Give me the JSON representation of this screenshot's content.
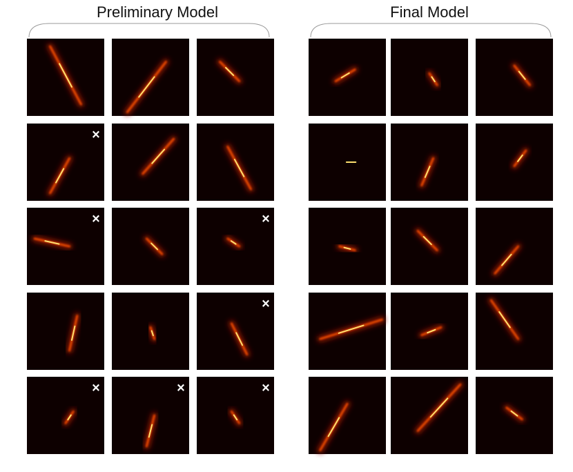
{
  "panels": [
    {
      "title": "Preliminary Model",
      "marked": [
        [
          false,
          false,
          false
        ],
        [
          true,
          false,
          false
        ],
        [
          true,
          false,
          true
        ],
        [
          false,
          false,
          true
        ],
        [
          true,
          true,
          true
        ]
      ]
    },
    {
      "title": "Final Model",
      "marked": [
        [
          false,
          false,
          false
        ],
        [
          false,
          false,
          false
        ],
        [
          false,
          false,
          false
        ],
        [
          false,
          false,
          false
        ],
        [
          false,
          false,
          false
        ]
      ]
    }
  ],
  "reject_mark": "×"
}
